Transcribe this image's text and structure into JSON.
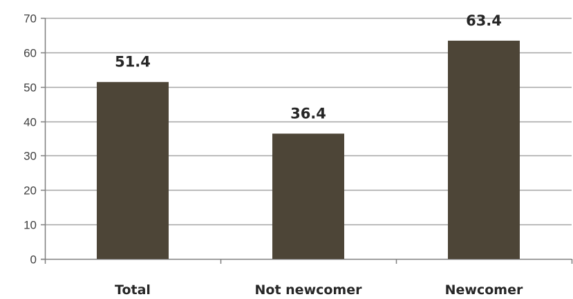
{
  "chart_data": {
    "type": "bar",
    "title": "",
    "xlabel": "",
    "ylabel": "",
    "categories": [
      "Total",
      "Not newcomer",
      "Newcomer"
    ],
    "values": [
      51.4,
      36.4,
      63.4
    ],
    "value_labels": [
      "51.4",
      "36.4",
      "63.4"
    ],
    "ylim": [
      0,
      70
    ],
    "yticks": [
      0,
      10,
      20,
      30,
      40,
      50,
      60,
      70
    ],
    "ytick_labels": [
      "0",
      "10",
      "20",
      "30",
      "40",
      "50",
      "60",
      "70"
    ],
    "grid": true,
    "legend": "none",
    "colors": {
      "bar": "#4d4537",
      "grid": "#a6a6a6",
      "axis": "#7f7f7f"
    }
  }
}
